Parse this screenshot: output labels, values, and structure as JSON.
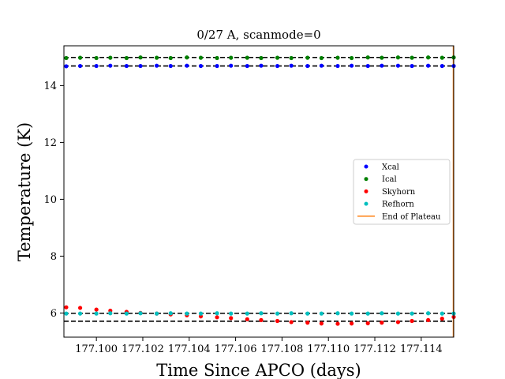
{
  "chart_data": {
    "type": "scatter",
    "title": "0/27 A, scanmode=0",
    "xlabel": "Time Since APCO (days)",
    "ylabel": "Temperature (K)",
    "xlim": [
      177.0986,
      177.1154
    ],
    "ylim": [
      5.15,
      15.4
    ],
    "xticks": [
      177.1,
      177.102,
      177.104,
      177.106,
      177.108,
      177.11,
      177.112,
      177.114
    ],
    "xtick_labels": [
      "177.100",
      "177.102",
      "177.104",
      "177.106",
      "177.108",
      "177.110",
      "177.112",
      "177.114"
    ],
    "yticks": [
      6,
      8,
      10,
      12,
      14
    ],
    "ytick_labels": [
      "6",
      "8",
      "10",
      "12",
      "14"
    ],
    "grid": false,
    "legend_position": "center-right",
    "x": [
      177.0987,
      177.0993,
      177.1,
      177.1006,
      177.1013,
      177.1019,
      177.1026,
      177.1032,
      177.1039,
      177.1045,
      177.1052,
      177.1058,
      177.1065,
      177.1071,
      177.1078,
      177.1084,
      177.1091,
      177.1097,
      177.1104,
      177.111,
      177.1117,
      177.1123,
      177.113,
      177.1136,
      177.1143,
      177.1149,
      177.1154
    ],
    "series": [
      {
        "name": "Xcal",
        "color": "#0000ff",
        "values": [
          14.68,
          14.69,
          14.69,
          14.7,
          14.69,
          14.69,
          14.7,
          14.69,
          14.7,
          14.69,
          14.69,
          14.7,
          14.69,
          14.7,
          14.69,
          14.7,
          14.69,
          14.7,
          14.69,
          14.7,
          14.69,
          14.7,
          14.7,
          14.69,
          14.7,
          14.69,
          14.69
        ]
      },
      {
        "name": "Ical",
        "color": "#008000",
        "values": [
          14.97,
          14.98,
          14.97,
          14.98,
          14.97,
          14.99,
          14.98,
          14.97,
          14.99,
          14.98,
          14.97,
          14.98,
          14.98,
          14.97,
          14.98,
          14.97,
          14.98,
          14.97,
          14.98,
          14.97,
          14.99,
          14.98,
          14.99,
          14.98,
          14.99,
          14.98,
          14.99
        ]
      },
      {
        "name": "Skyhorn",
        "color": "#ff0000",
        "values": [
          6.2,
          6.18,
          6.12,
          6.08,
          6.04,
          6.0,
          5.98,
          5.95,
          5.92,
          5.88,
          5.85,
          5.82,
          5.78,
          5.75,
          5.72,
          5.68,
          5.66,
          5.63,
          5.62,
          5.63,
          5.64,
          5.66,
          5.68,
          5.72,
          5.75,
          5.8,
          5.86
        ]
      },
      {
        "name": "Refhorn",
        "color": "#00bfbf",
        "values": [
          5.98,
          5.98,
          5.98,
          5.99,
          5.98,
          5.99,
          5.98,
          5.99,
          5.98,
          5.98,
          5.99,
          5.98,
          5.98,
          5.99,
          5.98,
          5.99,
          5.98,
          5.98,
          5.99,
          5.98,
          5.98,
          5.99,
          5.98,
          5.98,
          5.99,
          5.98,
          5.98
        ]
      }
    ],
    "hlines": [
      14.99,
      14.69,
      5.99,
      5.71
    ],
    "hline_color": "#000000",
    "vline": {
      "name": "End of Plateau",
      "x": 177.1154,
      "color": "#ff7f0e"
    },
    "legend": [
      "Xcal",
      "Ical",
      "Skyhorn",
      "Refhorn",
      "End of Plateau"
    ]
  }
}
